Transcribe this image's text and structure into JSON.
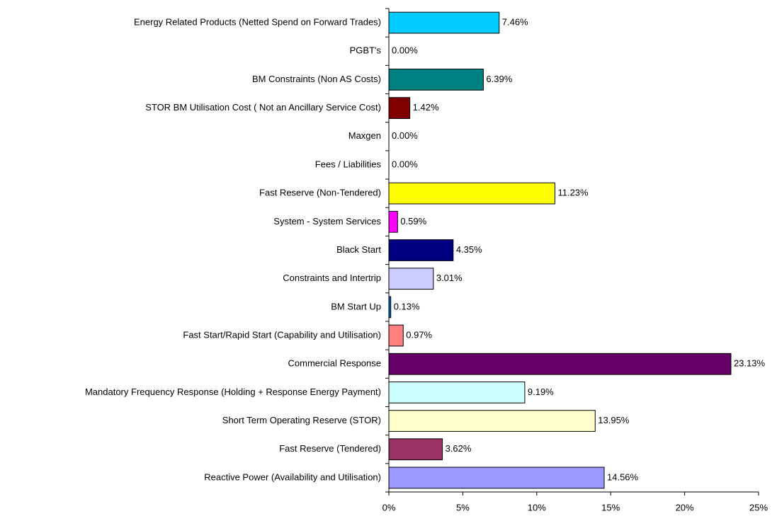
{
  "chart_data": {
    "type": "bar",
    "orientation": "horizontal",
    "categories": [
      "Energy Related Products (Netted Spend on Forward Trades)",
      "PGBT's",
      "BM Constraints (Non AS Costs)",
      "STOR BM Utilisation Cost ( Not an Ancillary Service Cost)",
      "Maxgen",
      "Fees / Liabilities",
      "Fast Reserve (Non-Tendered)",
      "System - System Services",
      "Black Start",
      "Constraints and Intertrip",
      "BM Start Up",
      "Fast Start/Rapid Start (Capability and Utilisation)",
      "Commercial Response",
      "Mandatory Frequency Response (Holding + Response Energy Payment)",
      "Short Term Operating Reserve (STOR)",
      "Fast Reserve (Tendered)",
      "Reactive Power (Availability and Utilisation)"
    ],
    "values": [
      7.46,
      0.0,
      6.39,
      1.42,
      0.0,
      0.0,
      11.23,
      0.59,
      4.35,
      3.01,
      0.13,
      0.97,
      23.13,
      9.19,
      13.95,
      3.62,
      14.56
    ],
    "value_labels": [
      "7.46%",
      "0.00%",
      "6.39%",
      "1.42%",
      "0.00%",
      "0.00%",
      "11.23%",
      "0.59%",
      "4.35%",
      "3.01%",
      "0.13%",
      "0.97%",
      "23.13%",
      "9.19%",
      "13.95%",
      "3.62%",
      "14.56%"
    ],
    "colors": [
      "#00ccff",
      "#ff0000",
      "#008080",
      "#800000",
      "#0000ff",
      "#00ff00",
      "#ffff00",
      "#ff00ff",
      "#000080",
      "#ccccff",
      "#0066cc",
      "#ff8080",
      "#660066",
      "#ccffff",
      "#ffffcc",
      "#993366",
      "#9999ff"
    ],
    "xlim": [
      0,
      25
    ],
    "xticks": [
      {
        "value": 0,
        "label": "0%"
      },
      {
        "value": 5,
        "label": "5%"
      },
      {
        "value": 10,
        "label": "10%"
      },
      {
        "value": 15,
        "label": "15%"
      },
      {
        "value": 20,
        "label": "20%"
      },
      {
        "value": 25,
        "label": "25%"
      }
    ]
  }
}
